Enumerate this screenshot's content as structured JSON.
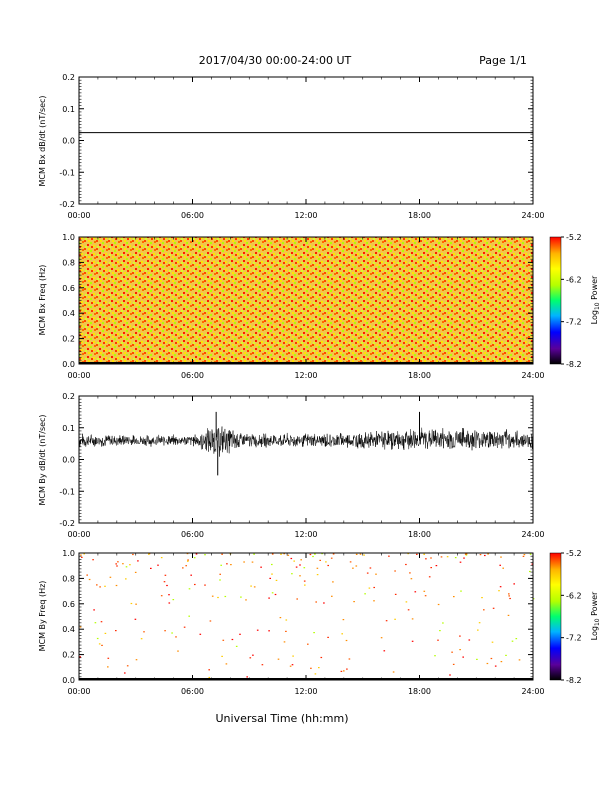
{
  "header": {
    "title": "2017/04/30  00:00-24:00 UT",
    "page": "Page 1/1"
  },
  "xlabel": "Universal Time (hh:mm)",
  "x_ticks": [
    "00:00",
    "06:00",
    "12:00",
    "18:00",
    "24:00"
  ],
  "colorbar": {
    "label": "Log10 Power",
    "ticks": [
      "-5.2",
      "-6.2",
      "-7.2",
      "-8.2"
    ],
    "range": [
      -8.2,
      -5.2
    ],
    "colors": [
      "#000000",
      "#5a009a",
      "#0000ff",
      "#00b4ff",
      "#00ff6e",
      "#b4ff00",
      "#ffff00",
      "#ffb400",
      "#ff0000"
    ]
  },
  "chart_data": [
    {
      "type": "line",
      "title": "",
      "ylabel": "MCM Bx dB/dt (nT/sec)",
      "xlim": [
        "00:00",
        "24:00"
      ],
      "ylim": [
        -0.2,
        0.2
      ],
      "y_ticks": [
        "0.2",
        "0.1",
        "0.0",
        "-0.1",
        "-0.2"
      ],
      "series": [
        {
          "x": [
            "00:00",
            "24:00"
          ],
          "values": [
            0.025,
            0.025
          ]
        }
      ]
    },
    {
      "type": "heatmap",
      "title": "",
      "ylabel": "MCM Bx Freq (Hz)",
      "xlim": [
        "00:00",
        "24:00"
      ],
      "ylim": [
        0.0,
        1.0
      ],
      "y_ticks": [
        "1.0",
        "0.8",
        "0.6",
        "0.4",
        "0.2",
        "0.0"
      ],
      "colorbar": "Log10 Power",
      "value_range": [
        -8.2,
        -5.2
      ],
      "typical_values": [
        -5.7,
        -5.2
      ]
    },
    {
      "type": "line",
      "title": "",
      "ylabel": "MCM By dB/dt (nT/sec)",
      "xlim": [
        "00:00",
        "24:00"
      ],
      "ylim": [
        -0.2,
        0.2
      ],
      "y_ticks": [
        "0.2",
        "0.1",
        "0.0",
        "-0.1",
        "-0.2"
      ],
      "series": [
        {
          "x": [
            "00:00",
            "03:00",
            "06:00",
            "07:15",
            "09:00",
            "12:00",
            "15:00",
            "18:00",
            "21:00",
            "24:00"
          ],
          "values": [
            0.06,
            0.06,
            0.06,
            0.06,
            0.06,
            0.06,
            0.06,
            0.065,
            0.065,
            0.06
          ],
          "spread": [
            0.025,
            0.02,
            0.02,
            0.06,
            0.025,
            0.025,
            0.03,
            0.04,
            0.04,
            0.03
          ],
          "extremes": [
            {
              "x": "07:15",
              "y": 0.15
            },
            {
              "x": "07:20",
              "y": -0.05
            },
            {
              "x": "18:00",
              "y": 0.15
            }
          ]
        }
      ]
    },
    {
      "type": "heatmap",
      "title": "",
      "ylabel": "MCM By Freq (Hz)",
      "xlim": [
        "00:00",
        "24:00"
      ],
      "ylim": [
        0.0,
        1.0
      ],
      "y_ticks": [
        "1.0",
        "0.8",
        "0.6",
        "0.4",
        "0.2",
        "0.0"
      ],
      "colorbar": "Log10 Power",
      "value_range": [
        -8.2,
        -5.2
      ],
      "sparse": true
    }
  ]
}
